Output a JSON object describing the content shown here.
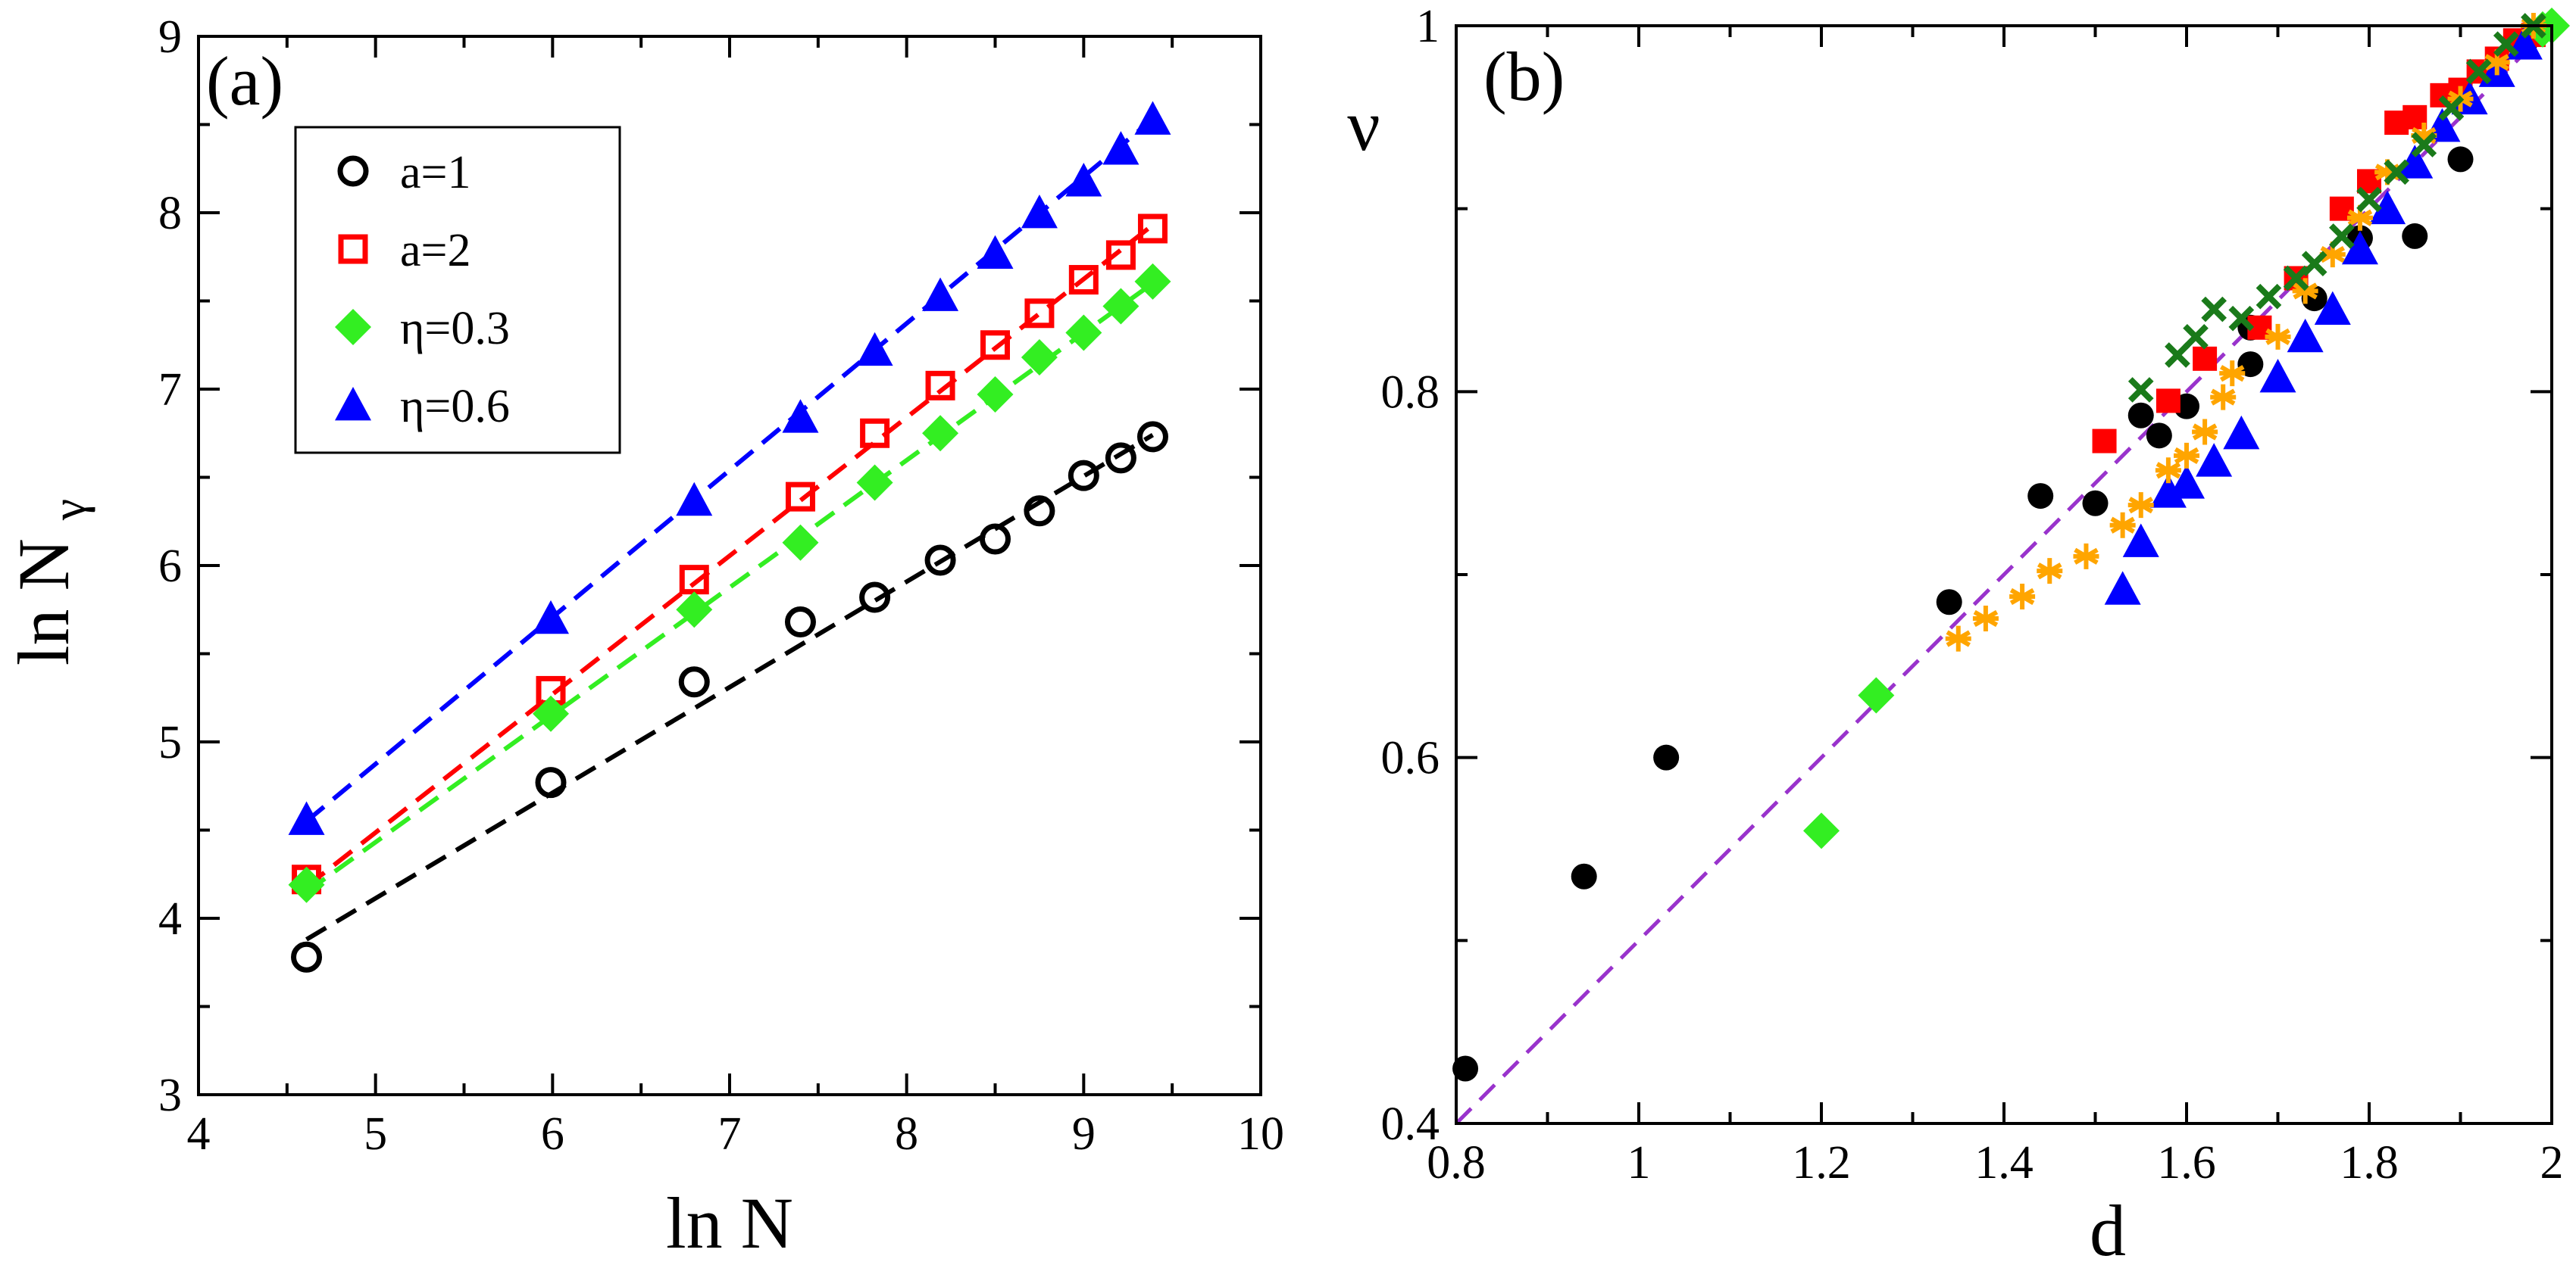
{
  "chart_data": [
    {
      "type": "scatter",
      "panel_label": "(a)",
      "xlabel": "ln N",
      "ylabel": "ln N",
      "ylabel_subscript": "γ",
      "xlim": [
        4,
        10
      ],
      "ylim": [
        3,
        9
      ],
      "xticks": [
        4,
        5,
        6,
        7,
        8,
        9,
        10
      ],
      "yticks": [
        3,
        4,
        5,
        6,
        7,
        8,
        9
      ],
      "grid": false,
      "legend": "top-left",
      "series": [
        {
          "name": "a=1",
          "marker": "open-circle",
          "color": "#000000",
          "x": [
            4.61,
            5.99,
            6.8,
            7.4,
            7.82,
            8.19,
            8.5,
            8.75,
            9.0,
            9.21,
            9.39
          ],
          "y": [
            3.78,
            4.77,
            5.34,
            5.68,
            5.82,
            6.03,
            6.15,
            6.31,
            6.51,
            6.61,
            6.73
          ],
          "fit": {
            "x": [
              4.61,
              9.39
            ],
            "y": [
              3.88,
              6.74
            ],
            "style": "dashed"
          }
        },
        {
          "name": "a=2",
          "marker": "open-square",
          "color": "#ff0000",
          "x": [
            4.61,
            5.99,
            6.8,
            7.4,
            7.82,
            8.19,
            8.5,
            8.75,
            9.0,
            9.21,
            9.39
          ],
          "y": [
            4.22,
            5.29,
            5.92,
            6.39,
            6.75,
            7.02,
            7.25,
            7.43,
            7.62,
            7.76,
            7.91
          ],
          "fit": {
            "x": [
              4.61,
              9.39
            ],
            "y": [
              4.18,
              7.93
            ],
            "style": "dashed"
          }
        },
        {
          "name": "η=0.3",
          "marker": "filled-diamond",
          "color": "#33ee22",
          "x": [
            4.61,
            5.99,
            6.8,
            7.4,
            7.82,
            8.19,
            8.5,
            8.75,
            9.0,
            9.21,
            9.39
          ],
          "y": [
            4.19,
            5.16,
            5.75,
            6.13,
            6.47,
            6.75,
            6.97,
            7.18,
            7.32,
            7.47,
            7.61
          ],
          "fit": {
            "x": [
              4.61,
              9.39
            ],
            "y": [
              4.15,
              7.6
            ],
            "style": "dashed"
          }
        },
        {
          "name": "η=0.6",
          "marker": "filled-triangle",
          "color": "#0000ff",
          "x": [
            4.61,
            5.99,
            6.8,
            7.4,
            7.82,
            8.19,
            8.5,
            8.75,
            9.0,
            9.21,
            9.39
          ],
          "y": [
            4.56,
            5.7,
            6.37,
            6.84,
            7.22,
            7.53,
            7.77,
            8.0,
            8.18,
            8.36,
            8.53
          ],
          "fit": {
            "x": [
              4.61,
              9.39
            ],
            "y": [
              4.55,
              8.53
            ],
            "style": "dashed"
          }
        }
      ]
    },
    {
      "type": "scatter",
      "panel_label": "(b)",
      "xlabel": "d",
      "ylabel": "ν",
      "xlim": [
        0.8,
        2
      ],
      "ylim": [
        0.4,
        1
      ],
      "xticks": [
        0.8,
        1,
        1.2,
        1.4,
        1.6,
        1.8,
        2
      ],
      "xtick_labels": [
        "0.8",
        "1",
        "1.2",
        "1.4",
        "1.6",
        "1.8",
        "2"
      ],
      "yticks": [
        0.4,
        0.6,
        0.8,
        1
      ],
      "ytick_labels": [
        "0.4",
        "0.6",
        "0.8",
        "1"
      ],
      "grid": false,
      "series": [
        {
          "marker": "filled-circle",
          "color": "#000000",
          "x": [
            0.81,
            0.94,
            1.03,
            1.34,
            1.44,
            1.5,
            1.55,
            1.57,
            1.6,
            1.67,
            1.67,
            1.74,
            1.79,
            1.85,
            1.9,
            1.97
          ],
          "y": [
            0.43,
            0.535,
            0.6,
            0.685,
            0.743,
            0.739,
            0.787,
            0.776,
            0.792,
            0.815,
            0.835,
            0.851,
            0.884,
            0.885,
            0.927,
            0.99
          ]
        },
        {
          "marker": "filled-square",
          "color": "#ff0000",
          "x": [
            1.51,
            1.58,
            1.62,
            1.68,
            1.72,
            1.77,
            1.8,
            1.83,
            1.85,
            1.88,
            1.9,
            1.92,
            1.94,
            1.96,
            1.98
          ],
          "y": [
            0.773,
            0.795,
            0.818,
            0.835,
            0.862,
            0.9,
            0.915,
            0.947,
            0.95,
            0.962,
            0.965,
            0.975,
            0.982,
            0.992,
            0.995
          ]
        },
        {
          "marker": "filled-diamond",
          "color": "#33ee22",
          "x": [
            1.2,
            1.26,
            1.99,
            2.0
          ],
          "y": [
            0.56,
            0.634,
            0.998,
            1.0
          ]
        },
        {
          "marker": "filled-triangle",
          "color": "#0000ff",
          "x": [
            1.53,
            1.55,
            1.58,
            1.6,
            1.63,
            1.66,
            1.7,
            1.73,
            1.76,
            1.79,
            1.82,
            1.85,
            1.88,
            1.91,
            1.94,
            1.97
          ],
          "y": [
            0.692,
            0.718,
            0.745,
            0.75,
            0.762,
            0.777,
            0.808,
            0.83,
            0.845,
            0.878,
            0.9,
            0.925,
            0.945,
            0.96,
            0.975,
            0.99
          ]
        },
        {
          "marker": "asterisk",
          "color": "#ffa500",
          "x": [
            1.35,
            1.38,
            1.42,
            1.45,
            1.49,
            1.53,
            1.55,
            1.58,
            1.6,
            1.62,
            1.64,
            1.65,
            1.7,
            1.73,
            1.76,
            1.79,
            1.82,
            1.86,
            1.9,
            1.94,
            1.98
          ],
          "y": [
            0.665,
            0.676,
            0.688,
            0.702,
            0.71,
            0.727,
            0.738,
            0.757,
            0.765,
            0.778,
            0.797,
            0.81,
            0.83,
            0.855,
            0.875,
            0.895,
            0.92,
            0.94,
            0.96,
            0.98,
            1.0
          ]
        },
        {
          "marker": "x-cross",
          "color": "#1a7a1a",
          "x": [
            1.55,
            1.59,
            1.61,
            1.63,
            1.66,
            1.69,
            1.72,
            1.74,
            1.77,
            1.8,
            1.83,
            1.86,
            1.89,
            1.92,
            1.95,
            1.98
          ],
          "y": [
            0.801,
            0.82,
            0.83,
            0.845,
            0.84,
            0.852,
            0.862,
            0.87,
            0.885,
            0.905,
            0.92,
            0.935,
            0.955,
            0.975,
            0.99,
            1.0
          ]
        }
      ],
      "reference_line": {
        "x": [
          0.8,
          2
        ],
        "y": [
          0.4,
          1
        ],
        "color": "#9933cc",
        "style": "dashed"
      }
    }
  ]
}
